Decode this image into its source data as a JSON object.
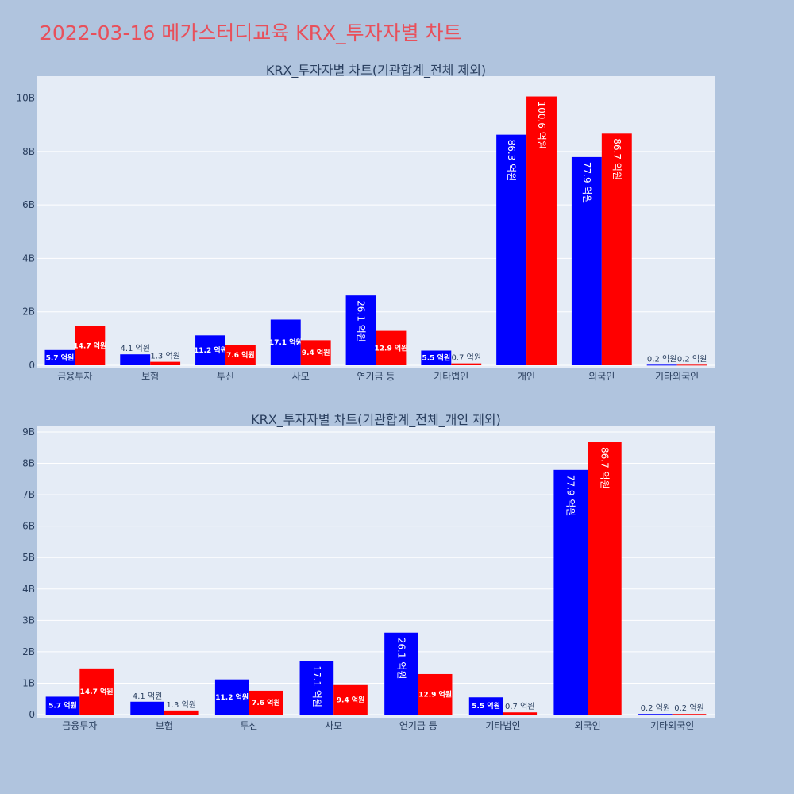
{
  "page_title": "2022-03-16 메가스터디교육 KRX_투자자별 차트",
  "colors": {
    "buy": "#0000ff",
    "sell": "#ff0000",
    "background": "#b0c4de",
    "plot_background": "#e5ecf6",
    "title": "#e8505b"
  },
  "chart_data": [
    {
      "type": "bar",
      "title": "KRX_투자자별 차트(기관합계_전체 제외)",
      "categories": [
        "금융투자",
        "보험",
        "투신",
        "사모",
        "연기금 등",
        "기타법인",
        "개인",
        "외국인",
        "기타외국인"
      ],
      "series": [
        {
          "values": [
            570000000,
            410000000,
            1120000000,
            1710000000,
            2610000000,
            550000000,
            8630000000,
            7790000000,
            20000000
          ],
          "labels": [
            "5.7 억원",
            "4.1 억원",
            "11.2 억원",
            "17.1 억원",
            "26.1 억원",
            "5.5 억원",
            "86.3 억원",
            "77.9 억원",
            "0.2 억원"
          ]
        },
        {
          "values": [
            1470000000,
            130000000,
            760000000,
            940000000,
            1290000000,
            70000000,
            10060000000,
            8670000000,
            20000000
          ],
          "labels": [
            "14.7 억원",
            "1.3 억원",
            "7.6 억원",
            "9.4 억원",
            "12.9 억원",
            "0.7 억원",
            "100.6 억원",
            "86.7 억원",
            "0.2 억원"
          ]
        }
      ],
      "yticks": [
        "0",
        "2B",
        "4B",
        "6B",
        "8B",
        "10B"
      ],
      "ytick_values": [
        0,
        2000000000,
        4000000000,
        6000000000,
        8000000000,
        10000000000
      ],
      "ylim": [
        0,
        10700000000
      ],
      "grid": true
    },
    {
      "type": "bar",
      "title": "KRX_투자자별 차트(기관합계_전체_개인 제외)",
      "categories": [
        "금융투자",
        "보험",
        "투신",
        "사모",
        "연기금 등",
        "기타법인",
        "외국인",
        "기타외국인"
      ],
      "series": [
        {
          "values": [
            570000000,
            410000000,
            1120000000,
            1710000000,
            2610000000,
            550000000,
            7790000000,
            20000000
          ],
          "labels": [
            "5.7 억원",
            "4.1 억원",
            "11.2 억원",
            "17.1 억원",
            "26.1 억원",
            "5.5 억원",
            "77.9 억원",
            "0.2 억원"
          ]
        },
        {
          "values": [
            1470000000,
            130000000,
            760000000,
            940000000,
            1290000000,
            70000000,
            8670000000,
            20000000
          ],
          "labels": [
            "14.7 억원",
            "1.3 억원",
            "7.6 억원",
            "9.4 억원",
            "12.9 억원",
            "0.7 억원",
            "86.7 억원",
            "0.2 억원"
          ]
        }
      ],
      "yticks": [
        "0",
        "1B",
        "2B",
        "3B",
        "4B",
        "5B",
        "6B",
        "7B",
        "8B",
        "9B"
      ],
      "ytick_values": [
        0,
        1000000000,
        2000000000,
        3000000000,
        4000000000,
        5000000000,
        6000000000,
        7000000000,
        8000000000,
        9000000000
      ],
      "ylim": [
        0,
        9100000000
      ],
      "grid": true
    }
  ]
}
